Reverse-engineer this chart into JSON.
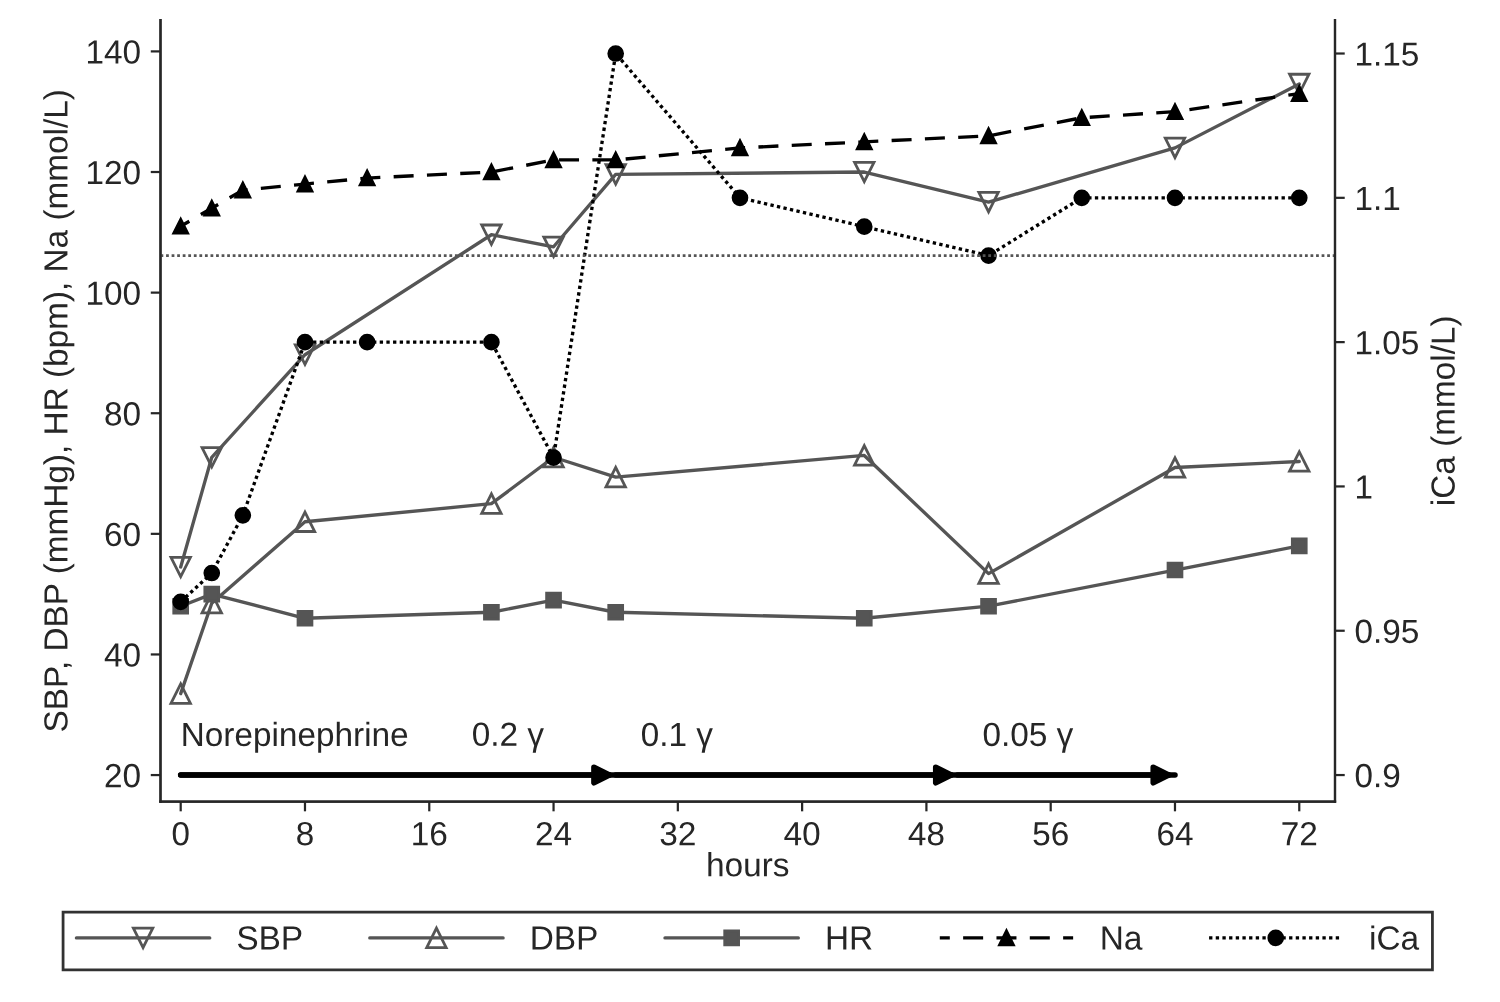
{
  "chart_data": {
    "type": "line",
    "xlabel": "hours",
    "ylabel": "SBP, DBP (mmHg), HR (bpm), Na (mmol/L)",
    "y2label": "iCa (mmol/L)",
    "xlim": [
      -1.3,
      74.3
    ],
    "xticks": [
      0,
      8,
      16,
      24,
      32,
      40,
      48,
      56,
      64,
      72
    ],
    "ylim": [
      15.6,
      145.2
    ],
    "yticks": [
      20,
      40,
      60,
      80,
      100,
      120,
      140
    ],
    "y2lim": [
      0.8908,
      1.1616
    ],
    "y2ticks": [
      0.9,
      0.95,
      1,
      1.05,
      1.1,
      1.15
    ],
    "grid": false,
    "legend": "bottom",
    "series": [
      {
        "name": "SBP",
        "color": "#555555",
        "marker": "triangle_down",
        "line_style": "solid",
        "x": [
          0,
          2,
          8,
          20,
          24,
          28,
          44,
          52,
          64,
          72
        ],
        "values": [
          54.5,
          72.7,
          89.7,
          109.6,
          107.6,
          119.6,
          120,
          115,
          124,
          134.6
        ]
      },
      {
        "name": "DBP",
        "color": "#555555",
        "marker": "triangle",
        "line_style": "solid",
        "x": [
          0,
          2,
          8,
          20,
          24,
          28,
          44,
          52,
          64,
          72
        ],
        "values": [
          33.5,
          48.5,
          62,
          65,
          72.7,
          69.4,
          73,
          53.4,
          71,
          72
        ]
      },
      {
        "name": "HR",
        "color": "#555555",
        "marker": "square",
        "line_style": "solid",
        "x": [
          0,
          2,
          8,
          20,
          24,
          28,
          44,
          52,
          64,
          72
        ],
        "values": [
          48,
          50,
          46,
          47,
          49,
          47,
          46,
          48,
          54,
          58
        ]
      },
      {
        "name": "Na",
        "color": "#000000",
        "marker": "triangle",
        "line_style": "dashed",
        "x": [
          0,
          2,
          4,
          8,
          12,
          20,
          24,
          28,
          36,
          44,
          52,
          58,
          64,
          72
        ],
        "values": [
          111,
          114,
          117,
          118,
          119,
          120,
          122,
          122,
          124,
          125,
          126,
          129,
          130,
          133
        ]
      },
      {
        "name": "iCa",
        "color": "#000000",
        "marker": "circle",
        "line_style": "dotted",
        "axis": "y2",
        "x": [
          0,
          2,
          4,
          8,
          12,
          20,
          24,
          28,
          36,
          44,
          52,
          58,
          64,
          72
        ],
        "values": [
          0.96,
          0.97,
          0.99,
          1.05,
          1.05,
          1.05,
          1.01,
          1.15,
          1.1,
          1.09,
          1.08,
          1.1,
          1.1,
          1.1
        ]
      },
      {
        "type": "step",
        "color": "#000000",
        "marker": "none",
        "line_style": "solid",
        "x": [
          0,
          28,
          50,
          64
        ],
        "values": [
          20,
          20,
          20,
          20
        ]
      }
    ],
    "ref_lines": [
      {
        "axis": "y2",
        "value": 1.08,
        "color": "#555555",
        "line_style": "dotted"
      }
    ],
    "annotations": [
      {
        "text": "Norepinephrine",
        "x": 0,
        "y": 20
      },
      "0.2 γ",
      {
        "text": "0.1 γ",
        "x": 28,
        "y": 20
      },
      {
        "text": "0.05 γ",
        "x": 50,
        "y": 20
      }
    ]
  }
}
